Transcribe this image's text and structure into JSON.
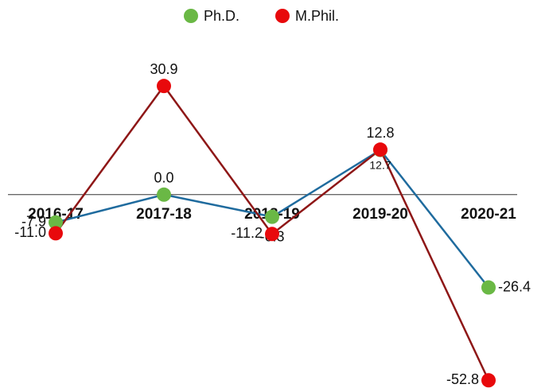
{
  "chart_data": {
    "type": "line",
    "categories": [
      "2016-17",
      "2017-18",
      "2018-19",
      "2019-20",
      "2020-21"
    ],
    "series": [
      {
        "name": "Ph.D.",
        "color": "#6ab845",
        "line_color": "#1f6b9e",
        "values": [
          -7.9,
          0.0,
          -6.3,
          12.7,
          -26.4
        ],
        "value_labels": [
          "-7.9",
          "0.0",
          "-6.3",
          "12.7",
          "-26.4"
        ]
      },
      {
        "name": "M.Phil.",
        "color": "#e8090c",
        "line_color": "#8e1717",
        "values": [
          -11.0,
          30.9,
          -11.2,
          12.8,
          -52.8
        ],
        "value_labels": [
          "-11.0",
          "30.9",
          "-11.2",
          "12.8",
          "-52.8"
        ]
      }
    ],
    "ylim": [
      -55,
      35
    ]
  }
}
